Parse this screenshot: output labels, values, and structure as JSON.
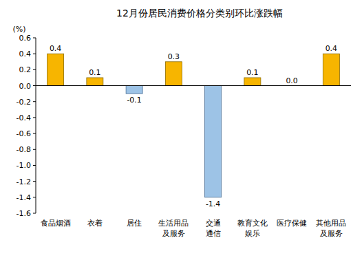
{
  "chart_data": {
    "type": "bar",
    "title": "12月份居民消费价格分类别环比涨跌幅",
    "y_label": "(%)",
    "categories": [
      "食品烟酒",
      "衣着",
      "居住",
      "生活用品\n及服务",
      "交通\n通信",
      "教育文化\n娱乐",
      "医疗保健",
      "其他用品\n及服务"
    ],
    "values": [
      0.4,
      0.1,
      -0.1,
      0.3,
      -1.4,
      0.1,
      0.0,
      0.4
    ],
    "value_labels": [
      "0.4",
      "0.1",
      "-0.1",
      "0.3",
      "-1.4",
      "0.1",
      "0.0",
      "0.4"
    ],
    "colors": [
      "#f7b500",
      "#f7b500",
      "#9dc3e6",
      "#f7b500",
      "#9dc3e6",
      "#f7b500",
      "#f7b500",
      "#f7b500"
    ],
    "ylim": [
      -1.6,
      0.6
    ],
    "yticks": [
      0.6,
      0.4,
      0.2,
      {
        "value": 0.0,
        "label": "0.0"
      },
      -0.2,
      -0.4,
      -0.6,
      -0.8,
      {
        "value": -1.0,
        "label": "-1.0"
      },
      -1.2,
      -1.4,
      -1.6
    ],
    "grid": false,
    "data_labels": true
  }
}
